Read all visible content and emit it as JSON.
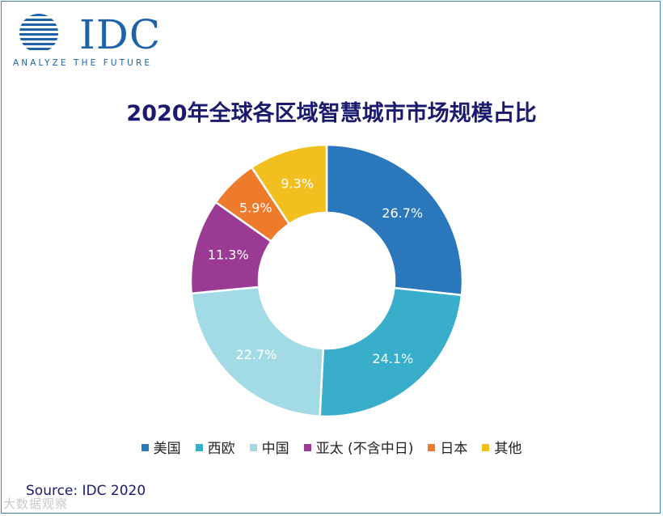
{
  "brand": {
    "name": "IDC",
    "tagline": "ANALYZE THE FUTURE"
  },
  "chart_data": {
    "type": "pie",
    "variant": "donut",
    "title": "2020年全球各区域智慧城市市场规模占比",
    "unit": "%",
    "categories": [
      "美国",
      "西欧",
      "中国",
      "亚太 (不含中日)",
      "日本",
      "其他"
    ],
    "values": [
      26.7,
      24.1,
      22.7,
      11.3,
      5.9,
      9.3
    ],
    "labels": [
      "26.7%",
      "24.1%",
      "22.7%",
      "11.3%",
      "5.9%",
      "9.3%"
    ],
    "colors": [
      "#2a77bb",
      "#38aecb",
      "#a2dbe6",
      "#9a3a92",
      "#ee7a2c",
      "#f2c01e"
    ],
    "legend_position": "bottom"
  },
  "source": "Source: IDC 2020",
  "watermark": "大数据观察"
}
